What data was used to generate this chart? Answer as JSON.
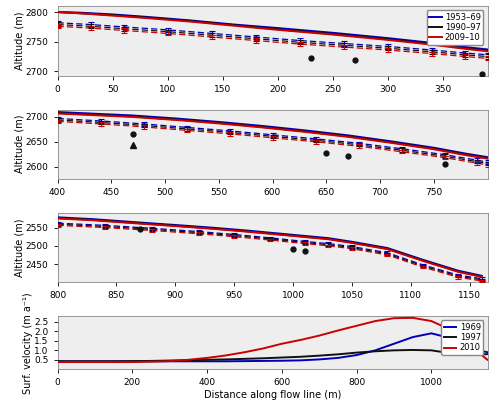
{
  "colors": {
    "blue": "#0000BB",
    "black": "#111111",
    "red": "#CC0000"
  },
  "panel1": {
    "xmin": 0,
    "xmax": 390,
    "ymin": 2693,
    "ymax": 2810,
    "ylabel": "Altitude (m)",
    "xticks": [
      0,
      50,
      100,
      150,
      200,
      250,
      300,
      350
    ],
    "yticks": [
      2700,
      2750,
      2800
    ],
    "surface_blue": [
      [
        0,
        2800
      ],
      [
        20,
        2799
      ],
      [
        50,
        2796
      ],
      [
        80,
        2792
      ],
      [
        120,
        2786
      ],
      [
        160,
        2779
      ],
      [
        200,
        2773
      ],
      [
        250,
        2765
      ],
      [
        300,
        2756
      ],
      [
        340,
        2748
      ],
      [
        370,
        2741
      ],
      [
        390,
        2737
      ]
    ],
    "surface_black": [
      [
        0,
        2800
      ],
      [
        20,
        2798
      ],
      [
        50,
        2795
      ],
      [
        80,
        2791
      ],
      [
        120,
        2785
      ],
      [
        160,
        2778
      ],
      [
        200,
        2771
      ],
      [
        250,
        2763
      ],
      [
        300,
        2754
      ],
      [
        340,
        2746
      ],
      [
        370,
        2739
      ],
      [
        390,
        2735
      ]
    ],
    "surface_red": [
      [
        0,
        2800
      ],
      [
        20,
        2798
      ],
      [
        50,
        2794
      ],
      [
        80,
        2790
      ],
      [
        120,
        2784
      ],
      [
        160,
        2777
      ],
      [
        200,
        2770
      ],
      [
        250,
        2762
      ],
      [
        300,
        2753
      ],
      [
        340,
        2745
      ],
      [
        370,
        2738
      ],
      [
        390,
        2734
      ]
    ],
    "bedrock_blue": [
      [
        0,
        2782
      ],
      [
        30,
        2779
      ],
      [
        60,
        2775
      ],
      [
        100,
        2770
      ],
      [
        140,
        2764
      ],
      [
        180,
        2758
      ],
      [
        220,
        2752
      ],
      [
        260,
        2747
      ],
      [
        300,
        2742
      ],
      [
        340,
        2736
      ],
      [
        370,
        2731
      ],
      [
        390,
        2728
      ]
    ],
    "bedrock_black": [
      [
        0,
        2779
      ],
      [
        30,
        2776
      ],
      [
        60,
        2772
      ],
      [
        100,
        2767
      ],
      [
        140,
        2761
      ],
      [
        180,
        2755
      ],
      [
        220,
        2749
      ],
      [
        260,
        2744
      ],
      [
        300,
        2739
      ],
      [
        340,
        2733
      ],
      [
        370,
        2728
      ],
      [
        390,
        2725
      ]
    ],
    "bedrock_red": [
      [
        0,
        2776
      ],
      [
        30,
        2773
      ],
      [
        60,
        2769
      ],
      [
        100,
        2764
      ],
      [
        140,
        2758
      ],
      [
        180,
        2752
      ],
      [
        220,
        2746
      ],
      [
        260,
        2741
      ],
      [
        300,
        2736
      ],
      [
        340,
        2730
      ],
      [
        370,
        2725
      ],
      [
        390,
        2722
      ]
    ],
    "gpr_circles_2013": [
      [
        230,
        2723
      ],
      [
        270,
        2720
      ],
      [
        385,
        2695
      ]
    ],
    "gpr_circles_err": [
      5,
      5,
      5
    ],
    "gpr_stars_2000": [],
    "gpr_triangles_2008": []
  },
  "panel2": {
    "xmin": 400,
    "xmax": 800,
    "ymin": 2575,
    "ymax": 2715,
    "ylabel": "Altitude (m)",
    "xticks": [
      400,
      450,
      500,
      550,
      600,
      650,
      700,
      750
    ],
    "yticks": [
      2600,
      2650,
      2700
    ],
    "surface_blue": [
      [
        400,
        2710
      ],
      [
        430,
        2707
      ],
      [
        470,
        2703
      ],
      [
        510,
        2697
      ],
      [
        550,
        2690
      ],
      [
        590,
        2682
      ],
      [
        630,
        2673
      ],
      [
        670,
        2663
      ],
      [
        710,
        2651
      ],
      [
        750,
        2638
      ],
      [
        780,
        2626
      ],
      [
        800,
        2619
      ]
    ],
    "surface_black": [
      [
        400,
        2708
      ],
      [
        430,
        2705
      ],
      [
        470,
        2701
      ],
      [
        510,
        2695
      ],
      [
        550,
        2688
      ],
      [
        590,
        2680
      ],
      [
        630,
        2671
      ],
      [
        670,
        2661
      ],
      [
        710,
        2649
      ],
      [
        750,
        2636
      ],
      [
        780,
        2624
      ],
      [
        800,
        2617
      ]
    ],
    "surface_red": [
      [
        400,
        2707
      ],
      [
        430,
        2704
      ],
      [
        470,
        2700
      ],
      [
        510,
        2694
      ],
      [
        550,
        2687
      ],
      [
        590,
        2679
      ],
      [
        630,
        2670
      ],
      [
        670,
        2660
      ],
      [
        710,
        2648
      ],
      [
        750,
        2635
      ],
      [
        780,
        2623
      ],
      [
        800,
        2616
      ]
    ],
    "bedrock_blue": [
      [
        400,
        2697
      ],
      [
        440,
        2692
      ],
      [
        480,
        2686
      ],
      [
        520,
        2679
      ],
      [
        560,
        2672
      ],
      [
        600,
        2664
      ],
      [
        640,
        2656
      ],
      [
        680,
        2647
      ],
      [
        720,
        2636
      ],
      [
        760,
        2624
      ],
      [
        790,
        2613
      ],
      [
        800,
        2609
      ]
    ],
    "bedrock_black": [
      [
        400,
        2694
      ],
      [
        440,
        2689
      ],
      [
        480,
        2683
      ],
      [
        520,
        2676
      ],
      [
        560,
        2669
      ],
      [
        600,
        2661
      ],
      [
        640,
        2653
      ],
      [
        680,
        2644
      ],
      [
        720,
        2633
      ],
      [
        760,
        2621
      ],
      [
        790,
        2610
      ],
      [
        800,
        2606
      ]
    ],
    "bedrock_red": [
      [
        400,
        2691
      ],
      [
        440,
        2686
      ],
      [
        480,
        2680
      ],
      [
        520,
        2673
      ],
      [
        560,
        2666
      ],
      [
        600,
        2658
      ],
      [
        640,
        2650
      ],
      [
        680,
        2641
      ],
      [
        720,
        2630
      ],
      [
        760,
        2618
      ],
      [
        790,
        2607
      ],
      [
        800,
        2603
      ]
    ],
    "gpr_circles_2013": [
      [
        470,
        2666
      ],
      [
        650,
        2628
      ],
      [
        670,
        2622
      ],
      [
        760,
        2605
      ]
    ],
    "gpr_circles_err": [
      5,
      5,
      5,
      5
    ],
    "gpr_stars_2000": [],
    "gpr_triangles_2008": [
      [
        470,
        2644
      ]
    ]
  },
  "panel3": {
    "xmin": 800,
    "xmax": 1165,
    "ymin": 2400,
    "ymax": 2590,
    "ylabel": "Altitude (m)",
    "xticks": [
      800,
      850,
      900,
      950,
      1000,
      1050,
      1100,
      1150
    ],
    "yticks": [
      2450,
      2500,
      2550
    ],
    "surface_blue": [
      [
        800,
        2578
      ],
      [
        830,
        2573
      ],
      [
        860,
        2566
      ],
      [
        900,
        2557
      ],
      [
        930,
        2550
      ],
      [
        960,
        2542
      ],
      [
        990,
        2533
      ],
      [
        1010,
        2527
      ],
      [
        1030,
        2521
      ],
      [
        1050,
        2511
      ],
      [
        1080,
        2494
      ],
      [
        1110,
        2462
      ],
      [
        1140,
        2432
      ],
      [
        1160,
        2418
      ]
    ],
    "surface_black": [
      [
        800,
        2576
      ],
      [
        830,
        2571
      ],
      [
        860,
        2564
      ],
      [
        900,
        2555
      ],
      [
        930,
        2548
      ],
      [
        960,
        2540
      ],
      [
        990,
        2531
      ],
      [
        1010,
        2525
      ],
      [
        1030,
        2519
      ],
      [
        1050,
        2509
      ],
      [
        1080,
        2492
      ],
      [
        1110,
        2460
      ],
      [
        1140,
        2430
      ],
      [
        1160,
        2416
      ]
    ],
    "surface_red": [
      [
        800,
        2575
      ],
      [
        830,
        2570
      ],
      [
        860,
        2563
      ],
      [
        900,
        2554
      ],
      [
        930,
        2547
      ],
      [
        960,
        2539
      ],
      [
        990,
        2530
      ],
      [
        1010,
        2524
      ],
      [
        1030,
        2518
      ],
      [
        1050,
        2508
      ],
      [
        1080,
        2491
      ],
      [
        1110,
        2459
      ],
      [
        1140,
        2429
      ],
      [
        1160,
        2415
      ]
    ],
    "bedrock_blue": [
      [
        800,
        2562
      ],
      [
        840,
        2556
      ],
      [
        880,
        2548
      ],
      [
        920,
        2539
      ],
      [
        950,
        2531
      ],
      [
        980,
        2522
      ],
      [
        1010,
        2512
      ],
      [
        1030,
        2506
      ],
      [
        1050,
        2498
      ],
      [
        1080,
        2481
      ],
      [
        1110,
        2448
      ],
      [
        1140,
        2420
      ],
      [
        1160,
        2410
      ]
    ],
    "bedrock_black": [
      [
        800,
        2559
      ],
      [
        840,
        2553
      ],
      [
        880,
        2545
      ],
      [
        920,
        2536
      ],
      [
        950,
        2528
      ],
      [
        980,
        2519
      ],
      [
        1010,
        2509
      ],
      [
        1030,
        2503
      ],
      [
        1050,
        2495
      ],
      [
        1080,
        2478
      ],
      [
        1110,
        2445
      ],
      [
        1140,
        2417
      ],
      [
        1160,
        2407
      ]
    ],
    "bedrock_red": [
      [
        800,
        2556
      ],
      [
        840,
        2550
      ],
      [
        880,
        2542
      ],
      [
        920,
        2533
      ],
      [
        950,
        2525
      ],
      [
        980,
        2516
      ],
      [
        1010,
        2506
      ],
      [
        1030,
        2500
      ],
      [
        1050,
        2492
      ],
      [
        1080,
        2475
      ],
      [
        1110,
        2442
      ],
      [
        1140,
        2414
      ],
      [
        1160,
        2404
      ]
    ],
    "gpr_circles_2013": [
      [
        870,
        2546
      ],
      [
        1000,
        2492
      ],
      [
        1010,
        2487
      ]
    ],
    "gpr_circles_err": [
      5,
      5,
      5
    ],
    "gpr_stars_2000": [],
    "gpr_triangles_2008": []
  },
  "panel4": {
    "ylabel": "Surf. velocity (m a⁻¹)",
    "xlabel": "Distance along flow line (m)",
    "xmin": 0,
    "xmax": 1150,
    "ymin": 0,
    "ymax": 2.8,
    "xticks": [
      0,
      200,
      400,
      600,
      800,
      1000
    ],
    "yticks": [
      0.5,
      1.0,
      1.5,
      2.0,
      2.5
    ],
    "vel_1969_x": [
      0,
      50,
      100,
      150,
      200,
      250,
      300,
      350,
      400,
      450,
      500,
      550,
      600,
      650,
      700,
      750,
      800,
      850,
      900,
      950,
      1000,
      1050,
      1100,
      1150
    ],
    "vel_1969_y": [
      0.42,
      0.42,
      0.42,
      0.42,
      0.42,
      0.42,
      0.42,
      0.42,
      0.42,
      0.42,
      0.43,
      0.44,
      0.45,
      0.47,
      0.52,
      0.6,
      0.75,
      1.0,
      1.35,
      1.7,
      1.9,
      1.65,
      1.1,
      0.9
    ],
    "vel_1997_x": [
      0,
      50,
      100,
      150,
      200,
      250,
      300,
      350,
      400,
      450,
      500,
      550,
      600,
      650,
      700,
      750,
      800,
      850,
      900,
      950,
      1000,
      1050,
      1100,
      1150
    ],
    "vel_1997_y": [
      0.42,
      0.42,
      0.42,
      0.42,
      0.43,
      0.44,
      0.46,
      0.48,
      0.5,
      0.52,
      0.55,
      0.58,
      0.62,
      0.66,
      0.72,
      0.79,
      0.88,
      0.95,
      1.0,
      1.02,
      1.0,
      0.85,
      0.75,
      0.8
    ],
    "vel_2010_x": [
      0,
      50,
      100,
      150,
      200,
      250,
      300,
      350,
      400,
      450,
      500,
      550,
      600,
      650,
      700,
      750,
      800,
      850,
      900,
      950,
      1000,
      1050,
      1100,
      1150
    ],
    "vel_2010_y": [
      0.38,
      0.38,
      0.38,
      0.38,
      0.38,
      0.4,
      0.43,
      0.5,
      0.6,
      0.73,
      0.9,
      1.1,
      1.35,
      1.55,
      1.78,
      2.05,
      2.3,
      2.55,
      2.7,
      2.72,
      2.55,
      2.1,
      1.3,
      0.5
    ],
    "legend_entries": [
      "1969",
      "1997",
      "2010"
    ]
  },
  "legend1_entries": [
    "1953–69",
    "1990–97",
    "2009–10"
  ],
  "bg_color": "#f0f0f0"
}
